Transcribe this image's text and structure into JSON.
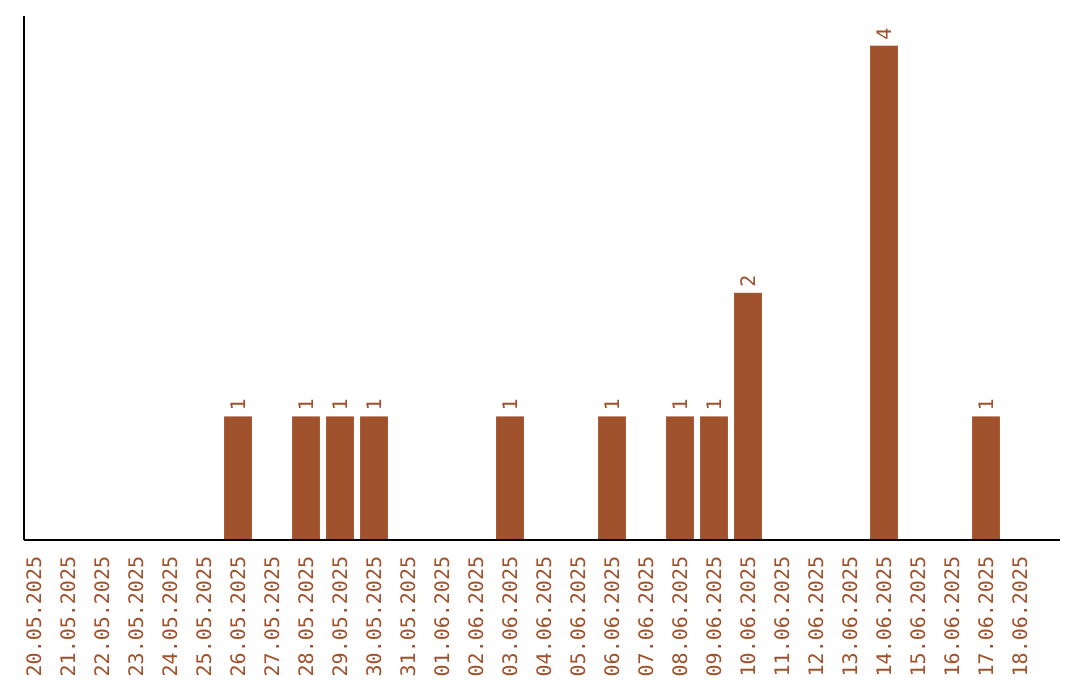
{
  "chart_data": {
    "type": "bar",
    "categories": [
      "20.05.2025",
      "21.05.2025",
      "22.05.2025",
      "23.05.2025",
      "24.05.2025",
      "25.05.2025",
      "26.05.2025",
      "27.05.2025",
      "28.05.2025",
      "29.05.2025",
      "30.05.2025",
      "31.05.2025",
      "01.06.2025",
      "02.06.2025",
      "03.06.2025",
      "04.06.2025",
      "05.06.2025",
      "06.06.2025",
      "07.06.2025",
      "08.06.2025",
      "09.06.2025",
      "10.06.2025",
      "11.06.2025",
      "12.06.2025",
      "13.06.2025",
      "14.06.2025",
      "15.06.2025",
      "16.06.2025",
      "17.06.2025",
      "18.06.2025"
    ],
    "values": [
      0,
      0,
      0,
      0,
      0,
      0,
      1,
      0,
      1,
      1,
      1,
      0,
      0,
      0,
      1,
      0,
      0,
      1,
      0,
      1,
      1,
      2,
      0,
      0,
      0,
      4,
      0,
      0,
      1,
      0
    ],
    "value_labels": [
      null,
      null,
      null,
      null,
      null,
      null,
      "1",
      null,
      "1",
      "1",
      "1",
      null,
      null,
      null,
      "1",
      null,
      null,
      "1",
      null,
      "1",
      "1",
      "2",
      null,
      null,
      null,
      "4",
      null,
      null,
      "1",
      null
    ],
    "color": "#a0522d"
  }
}
